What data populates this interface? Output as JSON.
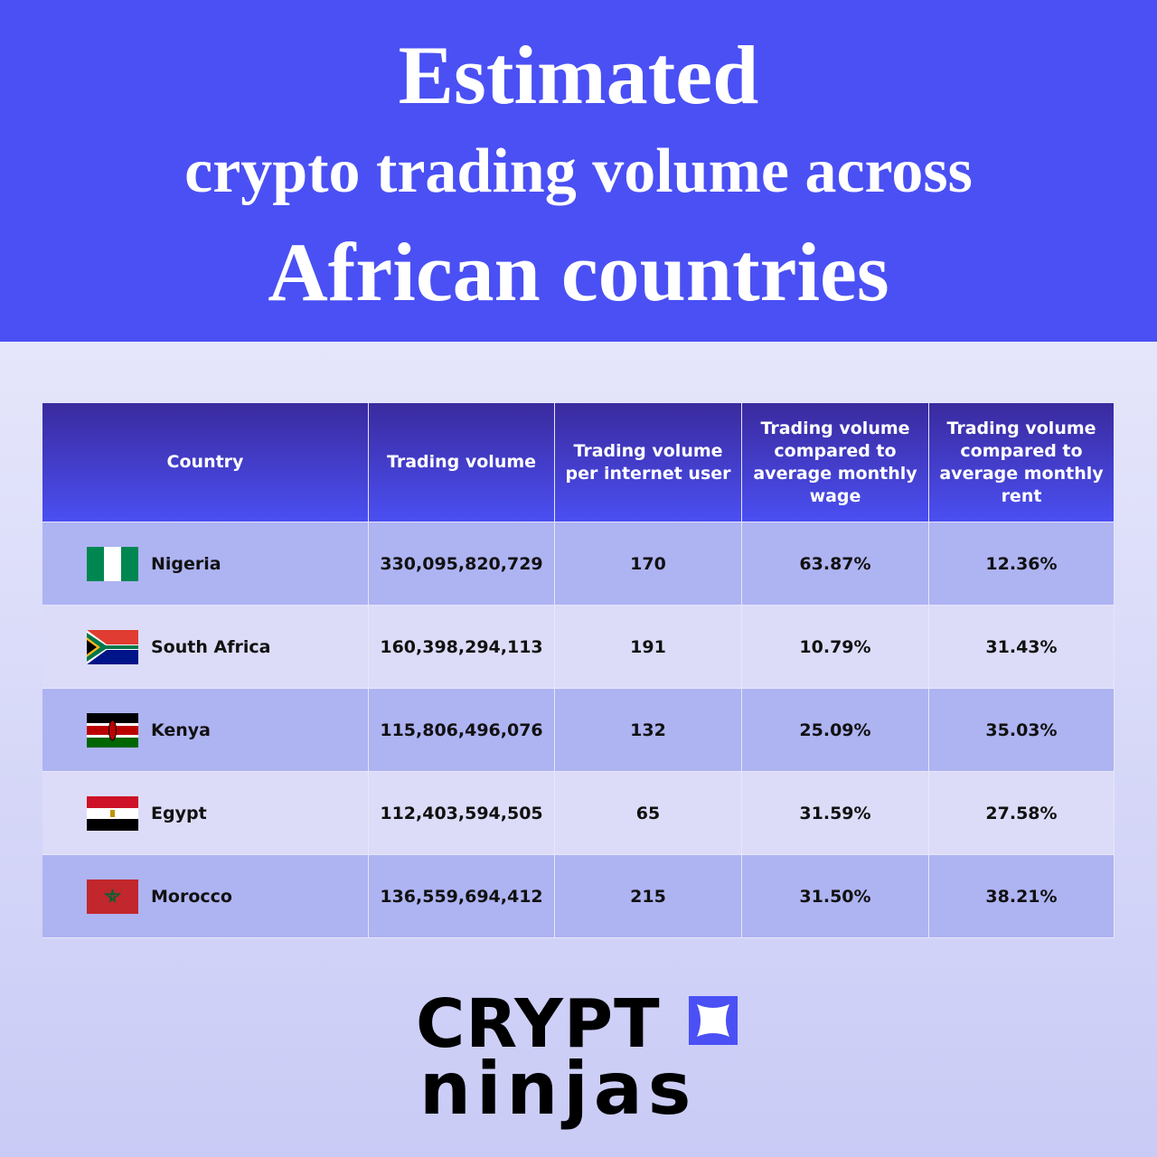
{
  "header": {
    "title_lines": [
      "Estimated",
      "crypto trading volume across",
      "African countries"
    ]
  },
  "table": {
    "columns": [
      "Country",
      "Trading volume",
      "Trading volume per internet user",
      "Trading volume compared to average monthly wage",
      "Trading volume compared to average monthly rent"
    ],
    "rows": [
      [
        "Nigeria",
        "330,095,820,729",
        "170",
        "63.87%",
        "12.36%"
      ],
      [
        "South Africa",
        "160,398,294,113",
        "191",
        "10.79%",
        "31.43%"
      ],
      [
        "Kenya",
        "115,806,496,076",
        "132",
        "25.09%",
        "35.03%"
      ],
      [
        "Egypt",
        "112,403,594,505",
        "65",
        "31.59%",
        "27.58%"
      ],
      [
        "Morocco",
        "136,559,694,412",
        "215",
        "31.50%",
        "38.21%"
      ]
    ]
  },
  "logo": {
    "line1": "CRYPT",
    "line2": "ninjas"
  }
}
